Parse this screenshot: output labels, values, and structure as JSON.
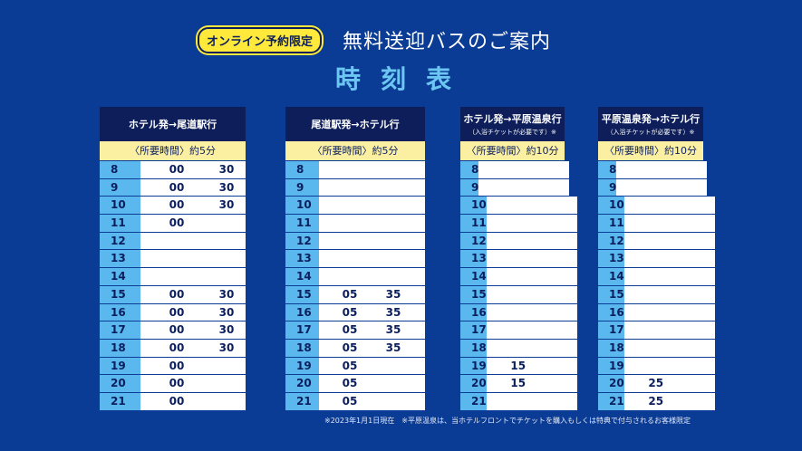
{
  "header": {
    "badge": "オンライン予約限定",
    "title": "無料送迎バスのご案内",
    "subtitle": "時刻表"
  },
  "tables": [
    {
      "title": "ホテル発→尾道駅行",
      "note": "",
      "duration": "〈所要時間〉約5分",
      "rows": [
        [
          "8",
          "00",
          "30"
        ],
        [
          "9",
          "00",
          "30"
        ],
        [
          "10",
          "00",
          "30"
        ],
        [
          "11",
          "00",
          ""
        ],
        [
          "12",
          "",
          ""
        ],
        [
          "13",
          "",
          ""
        ],
        [
          "14",
          "",
          ""
        ],
        [
          "15",
          "00",
          "30"
        ],
        [
          "16",
          "00",
          "30"
        ],
        [
          "17",
          "00",
          "30"
        ],
        [
          "18",
          "00",
          "30"
        ],
        [
          "19",
          "00",
          ""
        ],
        [
          "20",
          "00",
          ""
        ],
        [
          "21",
          "00",
          ""
        ]
      ]
    },
    {
      "title": "尾道駅発→ホテル行",
      "note": "",
      "duration": "〈所要時間〉約5分",
      "rows": [
        [
          "8",
          "",
          ""
        ],
        [
          "9",
          "",
          ""
        ],
        [
          "10",
          "",
          ""
        ],
        [
          "11",
          "",
          ""
        ],
        [
          "12",
          "",
          ""
        ],
        [
          "13",
          "",
          ""
        ],
        [
          "14",
          "",
          ""
        ],
        [
          "15",
          "05",
          "35"
        ],
        [
          "16",
          "05",
          "35"
        ],
        [
          "17",
          "05",
          "35"
        ],
        [
          "18",
          "05",
          "35"
        ],
        [
          "19",
          "05",
          ""
        ],
        [
          "20",
          "05",
          ""
        ],
        [
          "21",
          "05",
          ""
        ]
      ]
    },
    {
      "title": "ホテル発→平原温泉行",
      "note": "（入浴チケットが必要です）※",
      "duration": "〈所要時間〉約10分",
      "rows": [
        [
          "8",
          "",
          ""
        ],
        [
          "9",
          "",
          ""
        ],
        [
          "10",
          "",
          ""
        ],
        [
          "11",
          "",
          ""
        ],
        [
          "12",
          "",
          ""
        ],
        [
          "13",
          "",
          ""
        ],
        [
          "14",
          "",
          ""
        ],
        [
          "15",
          "",
          ""
        ],
        [
          "16",
          "",
          ""
        ],
        [
          "17",
          "",
          ""
        ],
        [
          "18",
          "",
          ""
        ],
        [
          "19",
          "15",
          ""
        ],
        [
          "20",
          "15",
          ""
        ],
        [
          "21",
          "",
          ""
        ]
      ]
    },
    {
      "title": "平原温泉発→ホテル行",
      "note": "（入浴チケットが必要です）※",
      "duration": "〈所要時間〉約10分",
      "rows": [
        [
          "8",
          "",
          ""
        ],
        [
          "9",
          "",
          ""
        ],
        [
          "10",
          "",
          ""
        ],
        [
          "11",
          "",
          ""
        ],
        [
          "12",
          "",
          ""
        ],
        [
          "13",
          "",
          ""
        ],
        [
          "14",
          "",
          ""
        ],
        [
          "15",
          "",
          ""
        ],
        [
          "16",
          "",
          ""
        ],
        [
          "17",
          "",
          ""
        ],
        [
          "18",
          "",
          ""
        ],
        [
          "19",
          "",
          ""
        ],
        [
          "20",
          "25",
          ""
        ],
        [
          "21",
          "25",
          ""
        ]
      ]
    }
  ],
  "footnote": "※2023年1月1日現在　※平原温泉は、当ホテルフロントでチケットを購入もしくは特典で付与されるお客様限定"
}
